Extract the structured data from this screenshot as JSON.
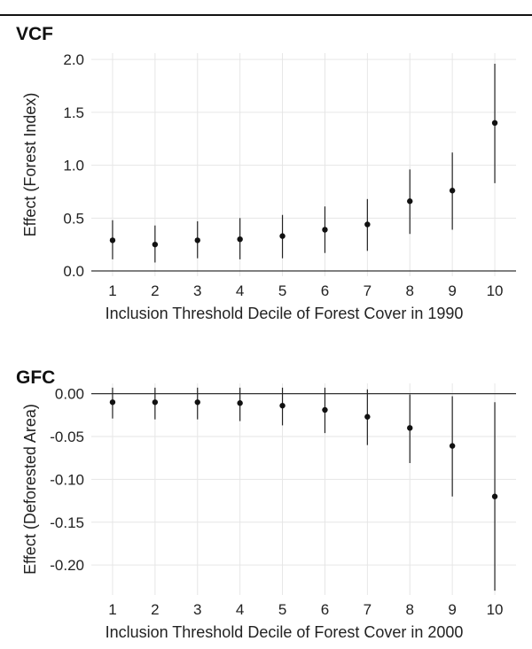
{
  "chart_data": [
    {
      "type": "scatter",
      "title": "VCF",
      "xlabel": "Inclusion Threshold Decile of Forest Cover in 1990",
      "ylabel": "Effect (Forest Index)",
      "x": [
        1,
        2,
        3,
        4,
        5,
        6,
        7,
        8,
        9,
        10
      ],
      "series": [
        {
          "estimate": [
            0.29,
            0.25,
            0.29,
            0.3,
            0.33,
            0.39,
            0.44,
            0.66,
            0.76,
            1.4
          ],
          "lower": [
            0.11,
            0.08,
            0.12,
            0.11,
            0.12,
            0.17,
            0.19,
            0.35,
            0.39,
            0.83
          ],
          "upper": [
            0.48,
            0.43,
            0.47,
            0.5,
            0.53,
            0.61,
            0.68,
            0.96,
            1.12,
            1.96
          ]
        }
      ],
      "yticks": [
        "0.0",
        "0.5",
        "1.0",
        "1.5",
        "2.0"
      ],
      "ylim": [
        -0.05,
        2.06
      ],
      "xlim": [
        0.5,
        10.5
      ],
      "reference_line": 0,
      "grid": true
    },
    {
      "type": "scatter",
      "title": "GFC",
      "xlabel": "Inclusion Threshold Decile of Forest Cover in 2000",
      "ylabel": "Effect (Deforested Area)",
      "x": [
        1,
        2,
        3,
        4,
        5,
        6,
        7,
        8,
        9,
        10
      ],
      "series": [
        {
          "estimate": [
            -0.01,
            -0.01,
            -0.01,
            -0.011,
            -0.014,
            -0.019,
            -0.027,
            -0.04,
            -0.061,
            -0.12
          ],
          "lower": [
            -0.029,
            -0.03,
            -0.03,
            -0.032,
            -0.037,
            -0.046,
            -0.06,
            -0.081,
            -0.12,
            -0.23
          ],
          "upper": [
            0.007,
            0.007,
            0.007,
            0.007,
            0.007,
            0.007,
            0.005,
            -0.001,
            -0.003,
            -0.01
          ]
        }
      ],
      "yticks": [
        "0.00",
        "-0.05",
        "-0.10",
        "-0.15",
        "-0.20"
      ],
      "ylim": [
        -0.235,
        0.012
      ],
      "xlim": [
        0.5,
        10.5
      ],
      "reference_line": 0,
      "grid": true
    }
  ]
}
